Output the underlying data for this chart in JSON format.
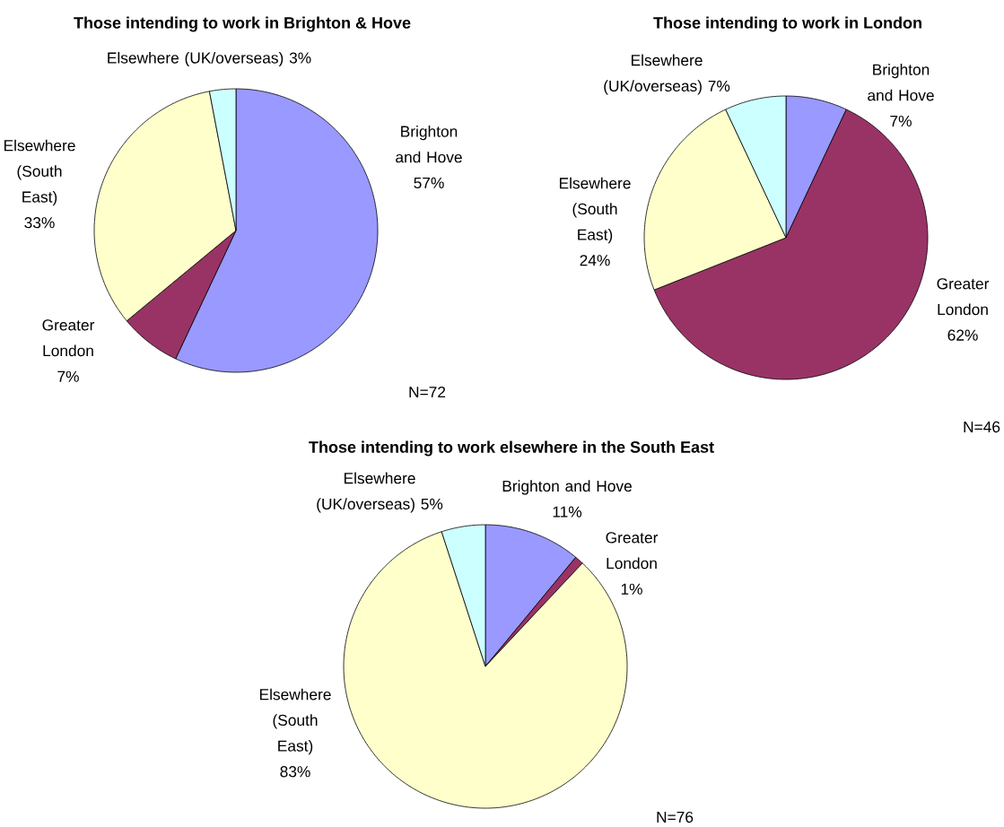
{
  "chart_data": [
    {
      "type": "pie",
      "title": "Those intending to work in Brighton & Hove",
      "categories": [
        "Brighton and Hove",
        "Greater London",
        "Elsewhere (South East)",
        "Elsewhere (UK/overseas)"
      ],
      "values": [
        57,
        7,
        33,
        3
      ],
      "value_labels": [
        "57%",
        "7%",
        "33%",
        "3%"
      ],
      "colors": [
        "#9999ff",
        "#993366",
        "#ffffcc",
        "#ccffff"
      ],
      "annotations": [
        "N=72"
      ]
    },
    {
      "type": "pie",
      "title": "Those intending to work in London",
      "categories": [
        "Brighton and Hove",
        "Greater London",
        "Elsewhere (South East)",
        "Elsewhere (UK/overseas)"
      ],
      "values": [
        7,
        62,
        24,
        7
      ],
      "value_labels": [
        "7%",
        "62%",
        "24%",
        "7%"
      ],
      "colors": [
        "#9999ff",
        "#993366",
        "#ffffcc",
        "#ccffff"
      ],
      "annotations": [
        "N=46"
      ]
    },
    {
      "type": "pie",
      "title": "Those intending to work elsewhere in the South East",
      "categories": [
        "Brighton and Hove",
        "Greater London",
        "Elsewhere (South East)",
        "Elsewhere (UK/overseas)"
      ],
      "values": [
        11,
        1,
        83,
        5
      ],
      "value_labels": [
        "11%",
        "1%",
        "83%",
        "5%"
      ],
      "colors": [
        "#9999ff",
        "#993366",
        "#ffffcc",
        "#ccffff"
      ],
      "annotations": [
        "N=76"
      ]
    }
  ]
}
